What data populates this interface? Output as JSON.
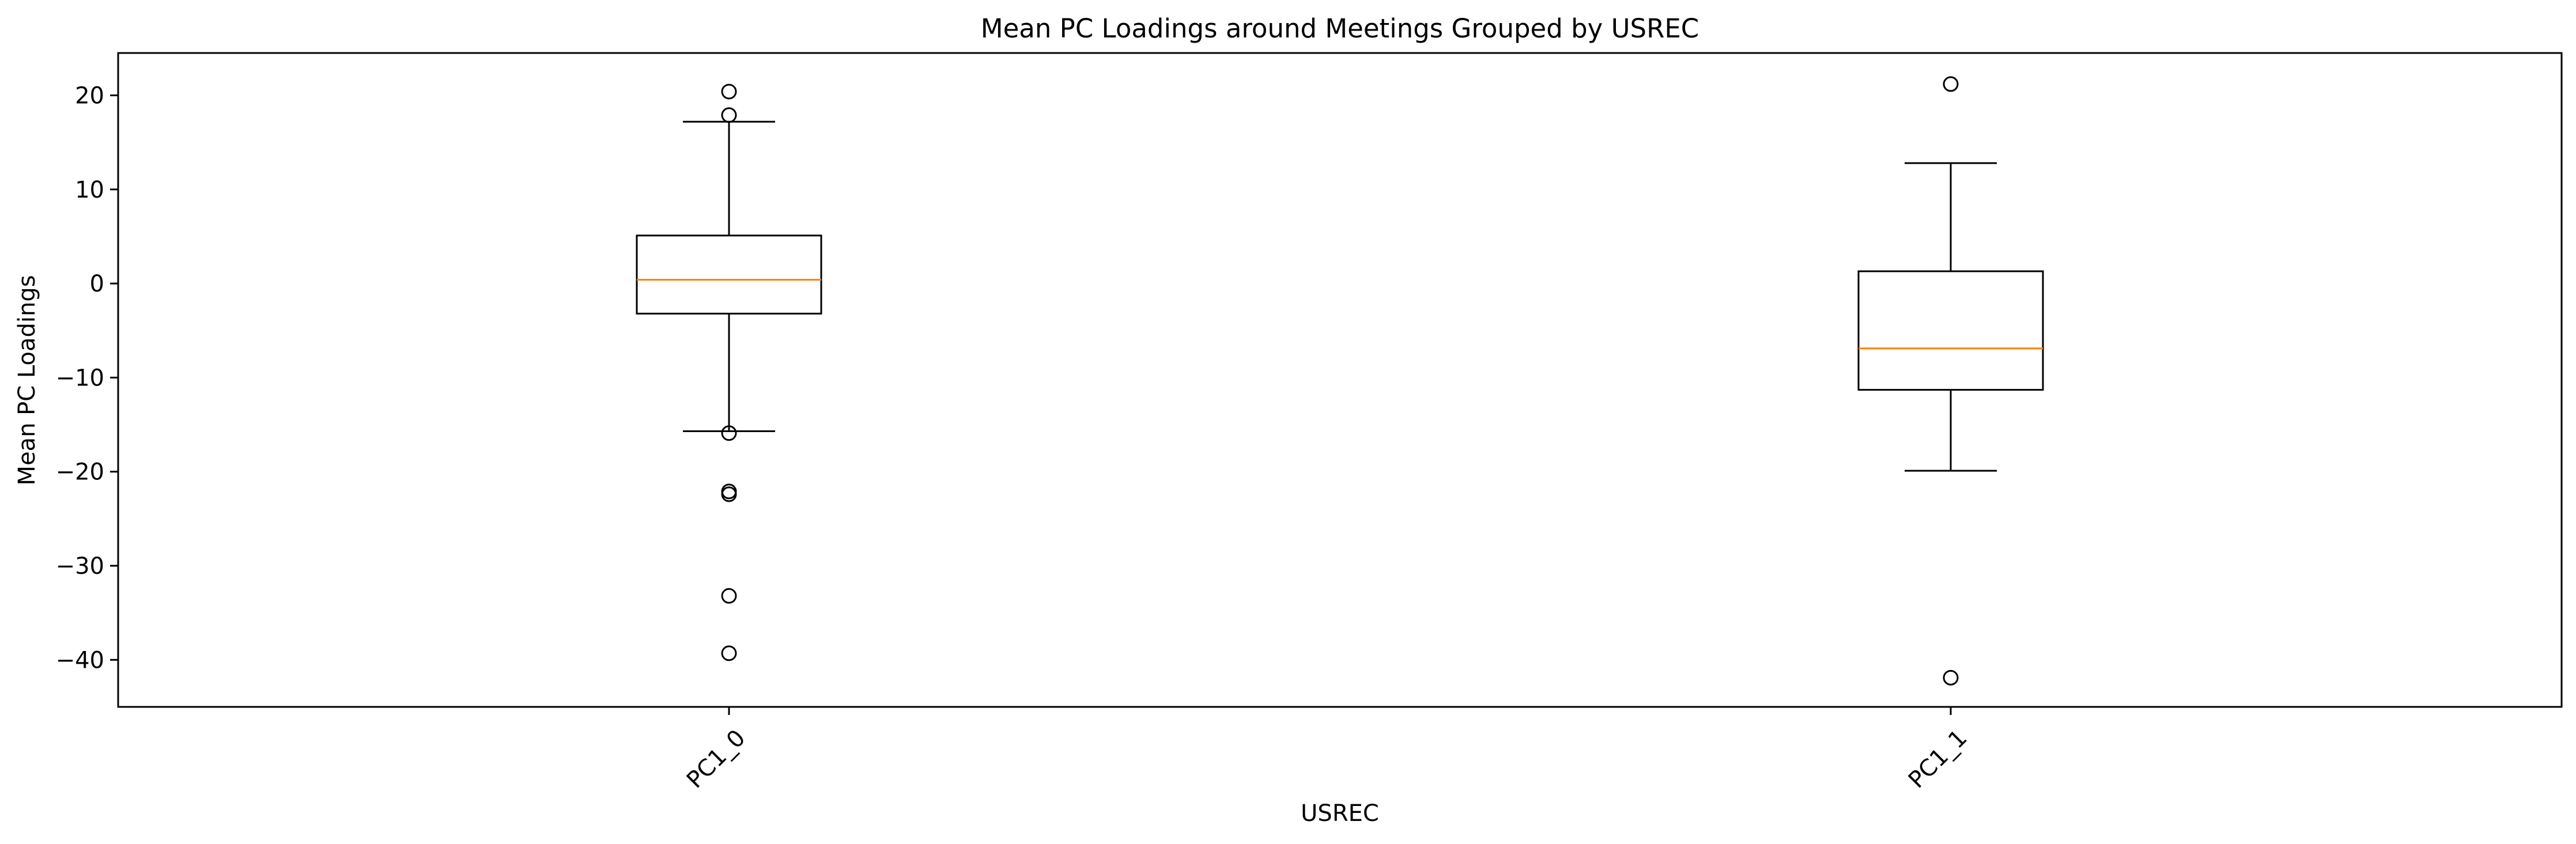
{
  "chart_data": {
    "type": "box",
    "title": "Mean PC Loadings around Meetings Grouped by USREC",
    "xlabel": "USREC",
    "ylabel": "Mean PC Loadings",
    "categories": [
      "PC1_0",
      "PC1_1"
    ],
    "ylim": [
      -45,
      24.5
    ],
    "yticks": [
      20,
      10,
      0,
      -10,
      -20,
      -30,
      -40
    ],
    "ytick_labels": [
      "20",
      "10",
      "0",
      "−10",
      "−20",
      "−30",
      "−40"
    ],
    "grid": false,
    "boxes": [
      {
        "category": "PC1_0",
        "whisker_low": -15.7,
        "q1": -3.2,
        "median": 0.4,
        "q3": 5.1,
        "whisker_high": 17.2,
        "outliers": [
          20.4,
          17.9,
          -15.9,
          -22.1,
          -22.4,
          -33.2,
          -39.3
        ]
      },
      {
        "category": "PC1_1",
        "whisker_low": -19.9,
        "q1": -11.3,
        "median": -6.9,
        "q3": 1.3,
        "whisker_high": 12.8,
        "outliers": [
          21.2,
          -41.9
        ]
      }
    ],
    "colors": {
      "box": "#000000",
      "median": "#ff7f0e",
      "outlier": "#000000"
    }
  }
}
